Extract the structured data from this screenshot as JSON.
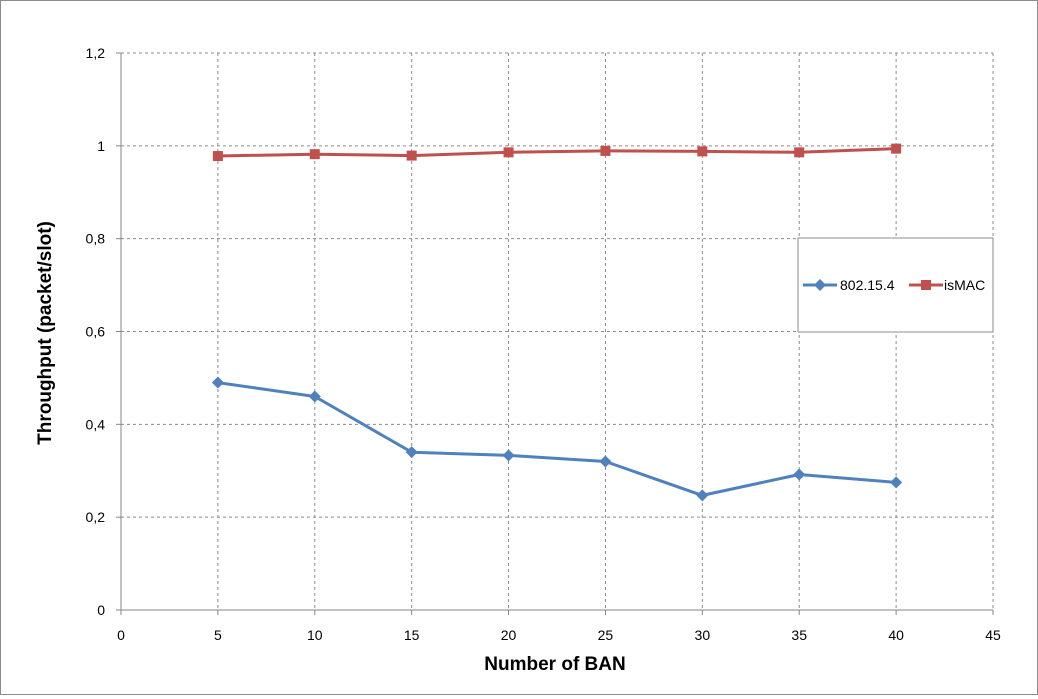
{
  "chart_data": {
    "type": "line",
    "title": "",
    "xlabel": "Number of BAN",
    "ylabel": "Throughput (packet/slot)",
    "xlim": [
      0,
      45
    ],
    "ylim": [
      0,
      1.2
    ],
    "x_ticks": [
      "0",
      "5",
      "10",
      "15",
      "20",
      "25",
      "30",
      "35",
      "40",
      "45"
    ],
    "y_ticks": [
      "0",
      "0,2",
      "0,4",
      "0,6",
      "0,8",
      "1",
      "1,2"
    ],
    "grid": true,
    "legend_position": "right",
    "series": [
      {
        "name": "802.15.4",
        "color": "#4f81bd",
        "marker": "diamond",
        "x": [
          5,
          10,
          15,
          20,
          25,
          30,
          35,
          40
        ],
        "values": [
          0.49,
          0.46,
          0.34,
          0.333,
          0.32,
          0.247,
          0.292,
          0.275
        ]
      },
      {
        "name": "isMAC",
        "color": "#c0504d",
        "marker": "square",
        "x": [
          5,
          10,
          15,
          20,
          25,
          30,
          35,
          40
        ],
        "values": [
          0.978,
          0.982,
          0.979,
          0.986,
          0.989,
          0.988,
          0.986,
          0.994
        ]
      }
    ]
  }
}
